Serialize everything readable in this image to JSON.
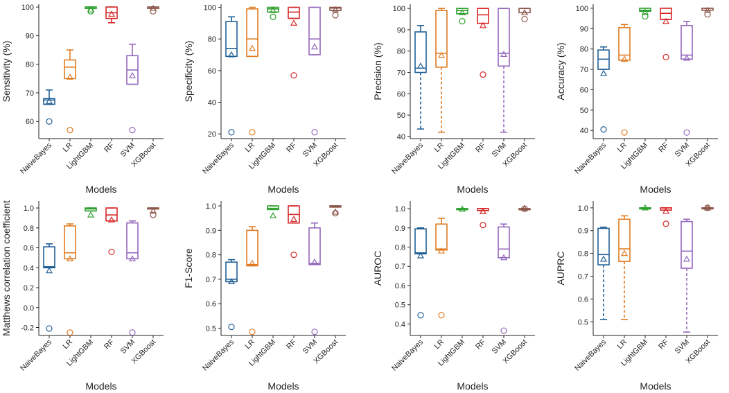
{
  "colors": {
    "NaiveBayes": "#1f5f96",
    "LR": "#e07b22",
    "LightGBM": "#2ca02c",
    "RF": "#d62728",
    "SVM": "#9467bd",
    "XGBoost": "#8c564b"
  },
  "chart_data": [
    {
      "type": "box",
      "title": "",
      "xlabel": "Models",
      "ylabel": "Sensitivity (%)",
      "categories": [
        "NaiveBayes",
        "LR",
        "LightGBM",
        "RF",
        "SVM",
        "XGBoost"
      ],
      "ylim": [
        54,
        101
      ],
      "yticks": [
        60,
        70,
        80,
        90,
        100
      ],
      "yticklabels": [
        "60",
        "70",
        "80",
        "90",
        "100"
      ],
      "boxes": [
        {
          "q1": 66,
          "median": 67.5,
          "q3": 68,
          "whislo": 66,
          "whishi": 71,
          "mean": 67,
          "fliers": [
            60
          ]
        },
        {
          "q1": 75,
          "median": 79,
          "q3": 81.5,
          "whislo": 75,
          "whishi": 85,
          "mean": 75.5,
          "fliers": [
            57
          ]
        },
        {
          "q1": 99.5,
          "median": 100,
          "q3": 100,
          "whislo": 99.5,
          "whishi": 100,
          "mean": 99,
          "fliers": [
            98.5
          ]
        },
        {
          "q1": 96,
          "median": 98,
          "q3": 100,
          "whislo": 94.5,
          "whishi": 100,
          "mean": 97.5,
          "fliers": []
        },
        {
          "q1": 73,
          "median": 78,
          "q3": 83,
          "whislo": 73,
          "whishi": 87,
          "mean": 76,
          "fliers": [
            57
          ]
        },
        {
          "q1": 99.5,
          "median": 100,
          "q3": 100,
          "whislo": 99.5,
          "whishi": 100,
          "mean": 99.5,
          "fliers": [
            98.5
          ]
        }
      ]
    },
    {
      "type": "box",
      "title": "",
      "xlabel": "Models",
      "ylabel": "Specificity (%)",
      "categories": [
        "NaiveBayes",
        "LR",
        "LightGBM",
        "RF",
        "SVM",
        "XGBoost"
      ],
      "ylim": [
        17,
        102
      ],
      "yticks": [
        20,
        40,
        60,
        80,
        100
      ],
      "yticklabels": [
        "20",
        "40",
        "60",
        "80",
        "100"
      ],
      "boxes": [
        {
          "q1": 69,
          "median": 74,
          "q3": 91,
          "whislo": 69,
          "whishi": 94,
          "mean": 70,
          "fliers": [
            21
          ]
        },
        {
          "q1": 69,
          "median": 80,
          "q3": 99,
          "whislo": 69,
          "whishi": 100,
          "mean": 74,
          "fliers": [
            21
          ]
        },
        {
          "q1": 97,
          "median": 99,
          "q3": 100,
          "whislo": 97,
          "whishi": 100,
          "mean": 98,
          "fliers": [
            94
          ]
        },
        {
          "q1": 93,
          "median": 97,
          "q3": 100,
          "whislo": 93,
          "whishi": 100,
          "mean": 90,
          "fliers": [
            57
          ]
        },
        {
          "q1": 70,
          "median": 80,
          "q3": 100,
          "whislo": 70,
          "whishi": 100,
          "mean": 75,
          "fliers": [
            21
          ]
        },
        {
          "q1": 98,
          "median": 99.5,
          "q3": 100,
          "whislo": 98,
          "whishi": 100,
          "mean": 98.5,
          "fliers": [
            95
          ]
        }
      ]
    },
    {
      "type": "box",
      "title": "",
      "xlabel": "Models",
      "ylabel": "Precision (%)",
      "categories": [
        "NaiveBayes",
        "LR",
        "LightGBM",
        "RF",
        "SVM",
        "XGBoost"
      ],
      "ylim": [
        39,
        102
      ],
      "yticks": [
        40,
        50,
        60,
        70,
        80,
        90,
        100
      ],
      "yticklabels": [
        "40",
        "50",
        "60",
        "70",
        "80",
        "90",
        "100"
      ],
      "boxes": [
        {
          "q1": 70,
          "median": 72,
          "q3": 89,
          "whislo": 43.5,
          "whishi": 92,
          "mean": 73,
          "fliers": []
        },
        {
          "q1": 72.5,
          "median": 79,
          "q3": 99,
          "whislo": 42,
          "whishi": 100,
          "mean": 78,
          "fliers": []
        },
        {
          "q1": 97.5,
          "median": 99,
          "q3": 100,
          "whislo": 97.5,
          "whishi": 100,
          "mean": 98,
          "fliers": [
            94
          ]
        },
        {
          "q1": 93,
          "median": 97,
          "q3": 100,
          "whislo": 93,
          "whishi": 100,
          "mean": 92,
          "fliers": [
            69
          ]
        },
        {
          "q1": 73,
          "median": 79,
          "q3": 100,
          "whislo": 42,
          "whishi": 100,
          "mean": 78.5,
          "fliers": []
        },
        {
          "q1": 98,
          "median": 100,
          "q3": 100,
          "whislo": 98,
          "whishi": 100,
          "mean": 98,
          "fliers": [
            95
          ]
        }
      ]
    },
    {
      "type": "box",
      "title": "",
      "xlabel": "Models",
      "ylabel": "Accuracy (%)",
      "categories": [
        "NaiveBayes",
        "LR",
        "LightGBM",
        "RF",
        "SVM",
        "XGBoost"
      ],
      "ylim": [
        36,
        102
      ],
      "yticks": [
        40,
        50,
        60,
        70,
        80,
        90,
        100
      ],
      "yticklabels": [
        "40",
        "50",
        "60",
        "70",
        "80",
        "90",
        "100"
      ],
      "boxes": [
        {
          "q1": 70,
          "median": 75,
          "q3": 79.5,
          "whislo": 70,
          "whishi": 81,
          "mean": 68,
          "fliers": [
            40.5
          ]
        },
        {
          "q1": 74.5,
          "median": 77,
          "q3": 90.5,
          "whislo": 74.5,
          "whishi": 92,
          "mean": 75,
          "fliers": [
            39
          ]
        },
        {
          "q1": 98.5,
          "median": 99,
          "q3": 100,
          "whislo": 98.5,
          "whishi": 100,
          "mean": 98,
          "fliers": [
            96
          ]
        },
        {
          "q1": 94.5,
          "median": 97.5,
          "q3": 100,
          "whislo": 94.5,
          "whishi": 100,
          "mean": 93.5,
          "fliers": [
            76
          ]
        },
        {
          "q1": 75,
          "median": 77,
          "q3": 91.5,
          "whislo": 75,
          "whishi": 93.5,
          "mean": 75.5,
          "fliers": [
            39
          ]
        },
        {
          "q1": 99,
          "median": 100,
          "q3": 100,
          "whislo": 99,
          "whishi": 100,
          "mean": 99,
          "fliers": [
            97
          ]
        }
      ]
    },
    {
      "type": "box",
      "title": "",
      "xlabel": "Models",
      "ylabel": "Matthews correlation coefficient",
      "categories": [
        "NaiveBayes",
        "LR",
        "LightGBM",
        "RF",
        "SVM",
        "XGBoost"
      ],
      "ylim": [
        -0.28,
        1.07
      ],
      "yticks": [
        -0.2,
        0.0,
        0.2,
        0.4,
        0.6,
        0.8,
        1.0
      ],
      "yticklabels": [
        "-0.2",
        "0.0",
        "0.2",
        "0.4",
        "0.6",
        "0.8",
        "1.0"
      ],
      "boxes": [
        {
          "q1": 0.4,
          "median": 0.41,
          "q3": 0.61,
          "whislo": 0.4,
          "whishi": 0.64,
          "mean": 0.37,
          "fliers": [
            -0.21
          ]
        },
        {
          "q1": 0.49,
          "median": 0.55,
          "q3": 0.82,
          "whislo": 0.49,
          "whishi": 0.84,
          "mean": 0.49,
          "fliers": [
            -0.25
          ]
        },
        {
          "q1": 0.97,
          "median": 0.99,
          "q3": 1.0,
          "whislo": 0.97,
          "whishi": 1.0,
          "mean": 0.93,
          "fliers": []
        },
        {
          "q1": 0.87,
          "median": 0.93,
          "q3": 1.0,
          "whislo": 0.87,
          "whishi": 1.0,
          "mean": 0.88,
          "fliers": [
            0.56
          ]
        },
        {
          "q1": 0.49,
          "median": 0.55,
          "q3": 0.85,
          "whislo": 0.49,
          "whishi": 0.87,
          "mean": 0.49,
          "fliers": [
            -0.25
          ]
        },
        {
          "q1": 0.99,
          "median": 1.0,
          "q3": 1.0,
          "whislo": 0.99,
          "whishi": 1.0,
          "mean": 0.97,
          "fliers": [
            0.93
          ]
        }
      ]
    },
    {
      "type": "box",
      "title": "",
      "xlabel": "Models",
      "ylabel": "F1-Score",
      "categories": [
        "NaiveBayes",
        "LR",
        "LightGBM",
        "RF",
        "SVM",
        "XGBoost"
      ],
      "ylim": [
        0.47,
        1.02
      ],
      "yticks": [
        0.5,
        0.6,
        0.7,
        0.8,
        0.9,
        1.0
      ],
      "yticklabels": [
        "0.5",
        "0.6",
        "0.7",
        "0.8",
        "0.9",
        "1.0"
      ],
      "boxes": [
        {
          "q1": 0.69,
          "median": 0.7,
          "q3": 0.77,
          "whislo": 0.69,
          "whishi": 0.78,
          "mean": 0.69,
          "fliers": [
            0.505
          ]
        },
        {
          "q1": 0.755,
          "median": 0.76,
          "q3": 0.9,
          "whislo": 0.755,
          "whishi": 0.915,
          "mean": 0.765,
          "fliers": [
            0.485
          ]
        },
        {
          "q1": 0.985,
          "median": 0.99,
          "q3": 1.0,
          "whislo": 0.985,
          "whishi": 1.0,
          "mean": 0.96,
          "fliers": []
        },
        {
          "q1": 0.93,
          "median": 0.965,
          "q3": 1.0,
          "whislo": 0.93,
          "whishi": 1.0,
          "mean": 0.945,
          "fliers": [
            0.8
          ]
        },
        {
          "q1": 0.76,
          "median": 0.765,
          "q3": 0.91,
          "whislo": 0.76,
          "whishi": 0.93,
          "mean": 0.77,
          "fliers": [
            0.485
          ]
        },
        {
          "q1": 0.995,
          "median": 1.0,
          "q3": 1.0,
          "whislo": 0.995,
          "whishi": 1.0,
          "mean": 0.975,
          "fliers": [
            0.97
          ]
        }
      ]
    },
    {
      "type": "box",
      "title": "",
      "xlabel": "Models",
      "ylabel": "AUROC",
      "categories": [
        "NaiveBayes",
        "LR",
        "LightGBM",
        "RF",
        "SVM",
        "XGBoost"
      ],
      "ylim": [
        0.34,
        1.04
      ],
      "yticks": [
        0.4,
        0.5,
        0.6,
        0.7,
        0.8,
        0.9,
        1.0
      ],
      "yticklabels": [
        "0.4",
        "0.5",
        "0.6",
        "0.7",
        "0.8",
        "0.9",
        "1.0"
      ],
      "boxes": [
        {
          "q1": 0.765,
          "median": 0.77,
          "q3": 0.895,
          "whislo": 0.765,
          "whishi": 0.9,
          "mean": 0.755,
          "fliers": [
            0.445
          ]
        },
        {
          "q1": 0.785,
          "median": 0.79,
          "q3": 0.92,
          "whislo": 0.785,
          "whishi": 0.95,
          "mean": 0.78,
          "fliers": [
            0.445
          ]
        },
        {
          "q1": 0.998,
          "median": 1.0,
          "q3": 1.0,
          "whislo": 0.998,
          "whishi": 1.0,
          "mean": 0.998,
          "fliers": []
        },
        {
          "q1": 0.99,
          "median": 1.0,
          "q3": 1.0,
          "whislo": 0.99,
          "whishi": 1.0,
          "mean": 0.985,
          "fliers": [
            0.915
          ]
        },
        {
          "q1": 0.745,
          "median": 0.79,
          "q3": 0.905,
          "whislo": 0.745,
          "whishi": 0.92,
          "mean": 0.745,
          "fliers": [
            0.365
          ]
        },
        {
          "q1": 0.999,
          "median": 1.0,
          "q3": 1.0,
          "whislo": 0.999,
          "whishi": 1.0,
          "mean": 1.0,
          "fliers": [
            1.0
          ]
        }
      ]
    },
    {
      "type": "box",
      "title": "",
      "xlabel": "Models",
      "ylabel": "AUPRC",
      "categories": [
        "NaiveBayes",
        "LR",
        "LightGBM",
        "RF",
        "SVM",
        "XGBoost"
      ],
      "ylim": [
        0.44,
        1.03
      ],
      "yticks": [
        0.5,
        0.6,
        0.7,
        0.8,
        0.9,
        1.0
      ],
      "yticklabels": [
        "0.5",
        "0.6",
        "0.7",
        "0.8",
        "0.9",
        "1.0"
      ],
      "boxes": [
        {
          "q1": 0.75,
          "median": 0.795,
          "q3": 0.91,
          "whislo": 0.51,
          "whishi": 0.915,
          "mean": 0.775,
          "fliers": []
        },
        {
          "q1": 0.765,
          "median": 0.82,
          "q3": 0.95,
          "whislo": 0.51,
          "whishi": 0.965,
          "mean": 0.8,
          "fliers": []
        },
        {
          "q1": 0.998,
          "median": 1.0,
          "q3": 1.0,
          "whislo": 0.998,
          "whishi": 1.0,
          "mean": 1.0,
          "fliers": []
        },
        {
          "q1": 0.99,
          "median": 1.0,
          "q3": 1.0,
          "whislo": 0.99,
          "whishi": 1.0,
          "mean": 0.985,
          "fliers": [
            0.93
          ]
        },
        {
          "q1": 0.735,
          "median": 0.81,
          "q3": 0.94,
          "whislo": 0.455,
          "whishi": 0.95,
          "mean": 0.775,
          "fliers": []
        },
        {
          "q1": 0.999,
          "median": 1.0,
          "q3": 1.0,
          "whislo": 0.999,
          "whishi": 1.0,
          "mean": 1.0,
          "fliers": [
            1.0
          ]
        }
      ]
    }
  ]
}
